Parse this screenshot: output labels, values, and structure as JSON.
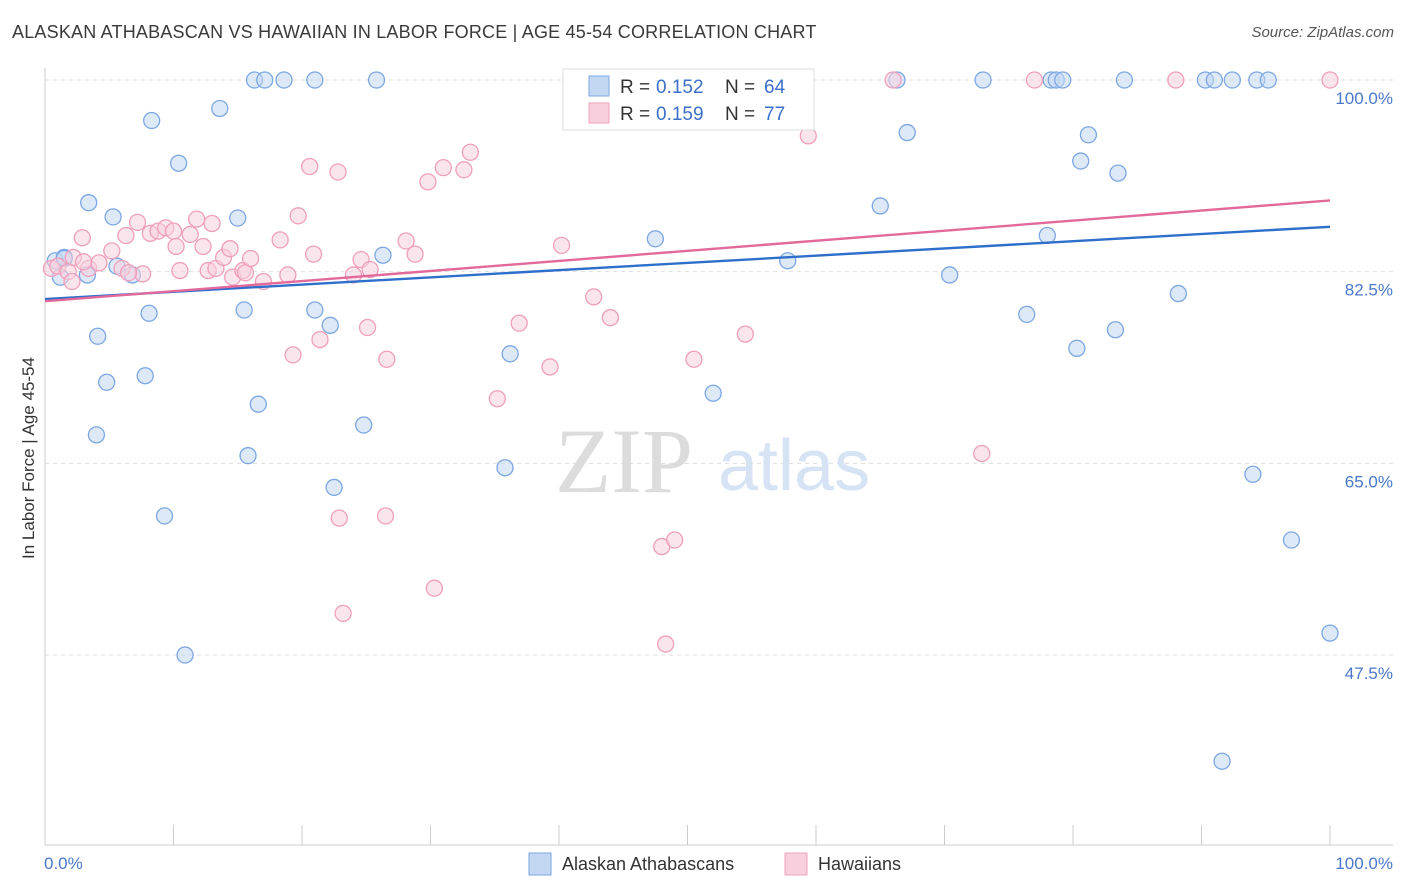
{
  "title": "ALASKAN ATHABASCAN VS HAWAIIAN IN LABOR FORCE | AGE 45-54 CORRELATION CHART",
  "source": "Source: ZipAtlas.com",
  "watermark": {
    "zip": "ZIP",
    "atlas": "atlas"
  },
  "chart_data": {
    "type": "scatter",
    "ylabel": "In Labor Force | Age 45-54",
    "xlim": [
      0,
      100
    ],
    "ylim": [
      30,
      100
    ],
    "x_tick_labels": {
      "left": "0.0%",
      "right": "100.0%"
    },
    "y_ticks": [
      {
        "value": 100,
        "label": "100.0%"
      },
      {
        "value": 82.5,
        "label": "82.5%"
      },
      {
        "value": 65,
        "label": "65.0%"
      },
      {
        "value": 47.5,
        "label": "47.5%"
      }
    ],
    "grid": true,
    "legend": {
      "placement": "top-center",
      "entries": [
        {
          "r_label": "R = ",
          "r_value": "0.152",
          "n_label": "N = ",
          "n_value": "64"
        },
        {
          "r_label": "R = ",
          "r_value": "0.159",
          "n_label": "N = ",
          "n_value": "77"
        }
      ]
    },
    "series": [
      {
        "name": "Alaskan Athabascans",
        "color": "#7ba7e3",
        "fill": "#c3d7f3",
        "line_color": "#2f6fcc",
        "trend": [
          [
            0,
            80.0
          ],
          [
            100,
            86.6
          ]
        ],
        "points": [
          [
            0.8,
            83.5
          ],
          [
            1.5,
            83.8
          ],
          [
            3.3,
            82.2
          ],
          [
            3.4,
            88.8
          ],
          [
            5.6,
            83.0
          ],
          [
            8.3,
            96.3
          ],
          [
            10.4,
            92.4
          ],
          [
            5.3,
            87.5
          ],
          [
            1.5,
            83.7
          ],
          [
            1.2,
            82.0
          ],
          [
            4.1,
            76.6
          ],
          [
            7.8,
            73.0
          ],
          [
            4.8,
            72.4
          ],
          [
            6.8,
            82.2
          ],
          [
            8.1,
            78.7
          ],
          [
            4.0,
            67.6
          ],
          [
            9.3,
            60.2
          ],
          [
            15.0,
            87.4
          ],
          [
            15.5,
            79.0
          ],
          [
            16.6,
            70.4
          ],
          [
            15.8,
            65.7
          ],
          [
            16.3,
            100.0
          ],
          [
            17.1,
            100.0
          ],
          [
            21.0,
            79.0
          ],
          [
            22.2,
            77.6
          ],
          [
            22.5,
            62.8
          ],
          [
            18.6,
            100.0
          ],
          [
            21.0,
            100.0
          ],
          [
            24.8,
            68.5
          ],
          [
            26.3,
            84.0
          ],
          [
            25.8,
            100.0
          ],
          [
            36.2,
            75.0
          ],
          [
            35.8,
            64.6
          ],
          [
            47.5,
            85.5
          ],
          [
            70.4,
            82.2
          ],
          [
            52.0,
            71.4
          ],
          [
            57.8,
            83.5
          ],
          [
            67.1,
            95.2
          ],
          [
            65.0,
            88.5
          ],
          [
            66.3,
            100.0
          ],
          [
            78.3,
            100.0
          ],
          [
            78.7,
            100.0
          ],
          [
            79.2,
            100.0
          ],
          [
            73.0,
            100.0
          ],
          [
            81.2,
            95.0
          ],
          [
            78.0,
            85.8
          ],
          [
            80.6,
            92.6
          ],
          [
            80.3,
            75.5
          ],
          [
            76.4,
            78.6
          ],
          [
            84.0,
            100.0
          ],
          [
            90.3,
            100.0
          ],
          [
            91.0,
            100.0
          ],
          [
            92.4,
            100.0
          ],
          [
            94.3,
            100.0
          ],
          [
            95.2,
            100.0
          ],
          [
            97.0,
            58.0
          ],
          [
            88.2,
            80.5
          ],
          [
            83.5,
            91.5
          ],
          [
            83.3,
            77.2
          ],
          [
            94.0,
            64.0
          ],
          [
            91.6,
            37.8
          ],
          [
            10.9,
            47.5
          ],
          [
            13.6,
            97.4
          ],
          [
            100.0,
            49.5
          ]
        ]
      },
      {
        "name": "Hawaiians",
        "color": "#ef9fbb",
        "fill": "#f8cfdd",
        "line_color": "#e2699a",
        "trend": [
          [
            0,
            79.8
          ],
          [
            100,
            89.0
          ]
        ],
        "points": [
          [
            0.5,
            82.8
          ],
          [
            1.0,
            83.0
          ],
          [
            1.8,
            82.5
          ],
          [
            2.2,
            83.8
          ],
          [
            2.9,
            85.6
          ],
          [
            3.4,
            82.8
          ],
          [
            4.2,
            83.3
          ],
          [
            5.2,
            84.4
          ],
          [
            6.0,
            82.8
          ],
          [
            6.3,
            85.8
          ],
          [
            7.2,
            87.0
          ],
          [
            7.6,
            82.3
          ],
          [
            8.2,
            86.0
          ],
          [
            8.8,
            86.2
          ],
          [
            9.4,
            86.5
          ],
          [
            10.0,
            86.2
          ],
          [
            10.5,
            82.6
          ],
          [
            11.3,
            85.9
          ],
          [
            11.8,
            87.3
          ],
          [
            12.3,
            84.8
          ],
          [
            12.7,
            82.6
          ],
          [
            13.3,
            82.8
          ],
          [
            13.9,
            83.8
          ],
          [
            14.4,
            84.6
          ],
          [
            14.6,
            82.0
          ],
          [
            15.4,
            82.6
          ],
          [
            15.6,
            82.4
          ],
          [
            16.0,
            83.7
          ],
          [
            17.0,
            81.6
          ],
          [
            18.3,
            85.4
          ],
          [
            18.9,
            82.2
          ],
          [
            19.3,
            74.9
          ],
          [
            19.7,
            87.6
          ],
          [
            20.6,
            92.1
          ],
          [
            20.9,
            84.1
          ],
          [
            21.4,
            76.3
          ],
          [
            22.8,
            91.6
          ],
          [
            22.9,
            60.0
          ],
          [
            23.2,
            51.3
          ],
          [
            24.0,
            82.2
          ],
          [
            24.6,
            83.6
          ],
          [
            25.1,
            77.4
          ],
          [
            25.3,
            82.7
          ],
          [
            26.6,
            74.5
          ],
          [
            28.1,
            85.3
          ],
          [
            28.8,
            84.1
          ],
          [
            29.8,
            90.7
          ],
          [
            30.3,
            53.6
          ],
          [
            31.0,
            92.0
          ],
          [
            32.6,
            91.8
          ],
          [
            33.1,
            93.4
          ],
          [
            35.2,
            70.9
          ],
          [
            36.9,
            77.8
          ],
          [
            39.3,
            73.8
          ],
          [
            40.2,
            84.9
          ],
          [
            42.7,
            80.2
          ],
          [
            44.0,
            78.3
          ],
          [
            44.6,
            100.0
          ],
          [
            47.1,
            97.0
          ],
          [
            48.0,
            57.4
          ],
          [
            49.0,
            58.0
          ],
          [
            49.9,
            96.3
          ],
          [
            50.5,
            74.5
          ],
          [
            54.5,
            76.8
          ],
          [
            59.4,
            94.9
          ],
          [
            66.0,
            100.0
          ],
          [
            72.9,
            65.9
          ],
          [
            77.0,
            100.0
          ],
          [
            88.0,
            100.0
          ],
          [
            100.0,
            100.0
          ],
          [
            2.1,
            81.6
          ],
          [
            6.5,
            82.4
          ],
          [
            26.5,
            60.2
          ],
          [
            48.3,
            48.5
          ],
          [
            3.0,
            83.4
          ],
          [
            10.2,
            84.8
          ],
          [
            13.0,
            86.9
          ]
        ]
      }
    ]
  }
}
